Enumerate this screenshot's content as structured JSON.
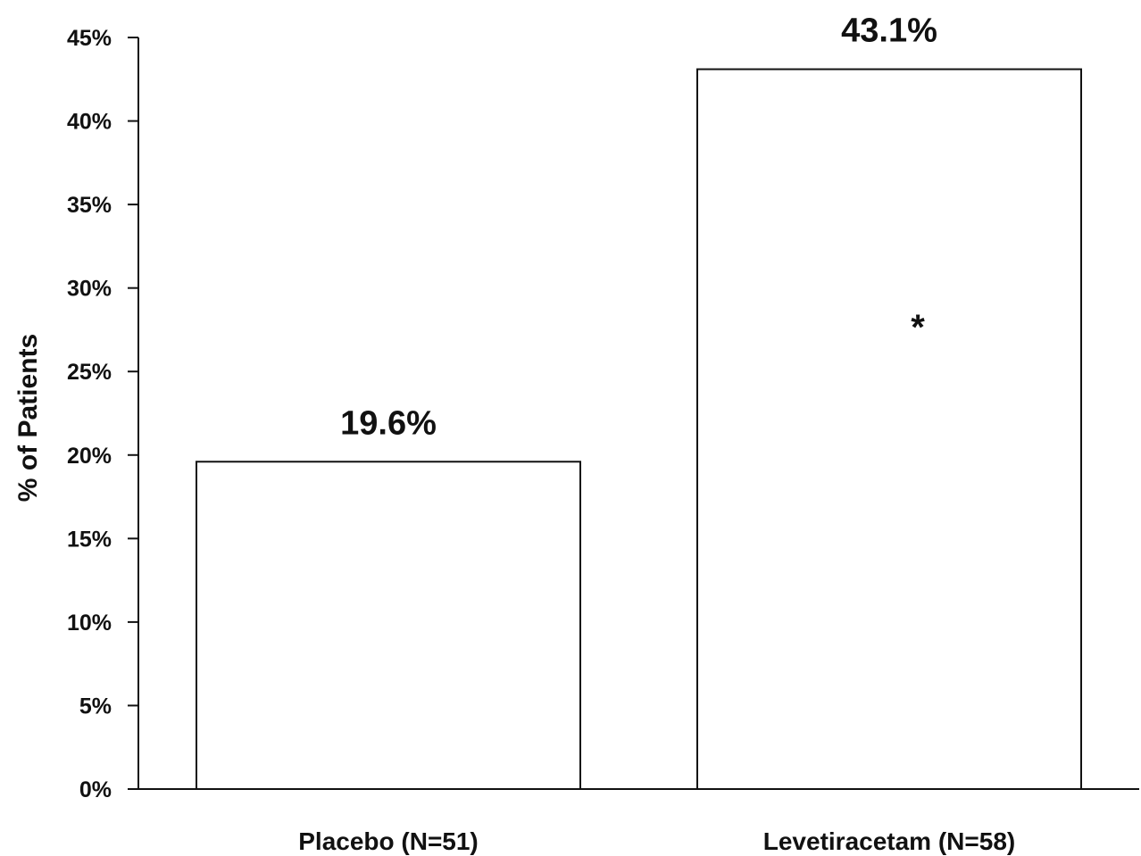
{
  "chart_data": {
    "type": "bar",
    "categories": [
      "Placebo (N=51)",
      "Levetiracetam (N=58)"
    ],
    "values": [
      19.6,
      43.1
    ],
    "value_labels": [
      "19.6%",
      "43.1%"
    ],
    "title": "",
    "xlabel": "",
    "ylabel": "% of Patients",
    "ylim": [
      0,
      45
    ],
    "yticks": [
      0,
      5,
      10,
      15,
      20,
      25,
      30,
      35,
      40,
      45
    ],
    "ytick_labels": [
      "0%",
      "5%",
      "10%",
      "15%",
      "20%",
      "25%",
      "30%",
      "35%",
      "40%",
      "45%"
    ],
    "annotations": [
      {
        "category": "Levetiracetam (N=58)",
        "text": "*",
        "y": 28
      }
    ],
    "grid": false,
    "legend": "none",
    "colors": {
      "bar_fill": "#ffffff",
      "bar_stroke": "#111111",
      "axis": "#111111"
    }
  }
}
